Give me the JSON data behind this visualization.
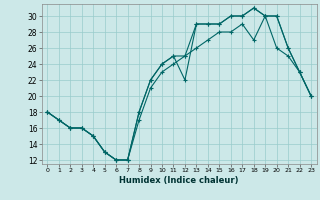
{
  "xlabel": "Humidex (Indice chaleur)",
  "background_color": "#cce8e8",
  "grid_color": "#99cccc",
  "line_color": "#006666",
  "xlim": [
    -0.5,
    23.5
  ],
  "ylim": [
    11.5,
    31.5
  ],
  "xticks": [
    0,
    1,
    2,
    3,
    4,
    5,
    6,
    7,
    8,
    9,
    10,
    11,
    12,
    13,
    14,
    15,
    16,
    17,
    18,
    19,
    20,
    21,
    22,
    23
  ],
  "yticks": [
    12,
    14,
    16,
    18,
    20,
    22,
    24,
    26,
    28,
    30
  ],
  "line1_x": [
    0,
    1,
    2,
    3,
    4,
    5,
    6,
    7,
    8,
    9,
    10,
    11,
    12,
    13,
    14,
    15,
    16,
    17,
    18,
    19,
    20,
    21,
    22,
    23
  ],
  "line1_y": [
    18,
    17,
    16,
    16,
    15,
    13,
    12,
    12,
    18,
    22,
    24,
    25,
    22,
    29,
    29,
    29,
    30,
    30,
    31,
    30,
    30,
    26,
    23,
    20
  ],
  "line2_x": [
    0,
    1,
    2,
    3,
    4,
    5,
    6,
    7,
    8,
    9,
    10,
    11,
    12,
    13,
    14,
    15,
    16,
    17,
    18,
    19,
    20,
    21,
    22,
    23
  ],
  "line2_y": [
    18,
    17,
    16,
    16,
    15,
    13,
    12,
    12,
    18,
    22,
    24,
    25,
    25,
    29,
    29,
    29,
    30,
    30,
    31,
    30,
    30,
    26,
    23,
    20
  ],
  "line3_x": [
    0,
    1,
    2,
    3,
    4,
    5,
    6,
    7,
    8,
    9,
    10,
    11,
    12,
    13,
    14,
    15,
    16,
    17,
    18,
    19,
    20,
    21,
    22,
    23
  ],
  "line3_y": [
    18,
    17,
    16,
    16,
    15,
    13,
    12,
    12,
    17,
    21,
    23,
    24,
    25,
    26,
    27,
    28,
    28,
    29,
    27,
    30,
    26,
    25,
    23,
    20
  ]
}
